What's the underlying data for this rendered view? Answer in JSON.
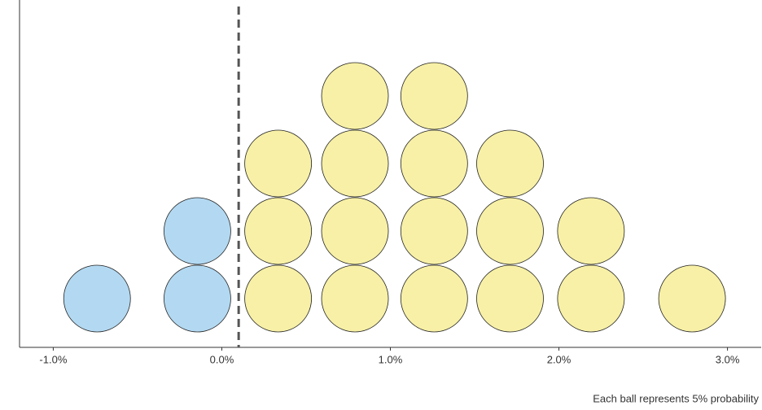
{
  "chart_data": {
    "type": "dot",
    "caption": "Each ball represents 5% probability",
    "x": [
      -0.74,
      -0.145,
      0.334,
      0.79,
      1.26,
      1.71,
      2.19,
      2.79
    ],
    "counts": [
      1,
      2,
      3,
      4,
      4,
      3,
      2,
      1
    ],
    "threshold": 0.1,
    "below_color": "#b3d9f2",
    "above_color": "#f7f0a6",
    "xlim": [
      -1.2,
      3.2
    ],
    "xticks": [
      {
        "value": -1,
        "label": "-1.0%"
      },
      {
        "value": 0,
        "label": "0.0%"
      },
      {
        "value": 1,
        "label": "1.0%"
      },
      {
        "value": 2,
        "label": "2.0%"
      },
      {
        "value": 3,
        "label": "3.0%"
      }
    ]
  }
}
